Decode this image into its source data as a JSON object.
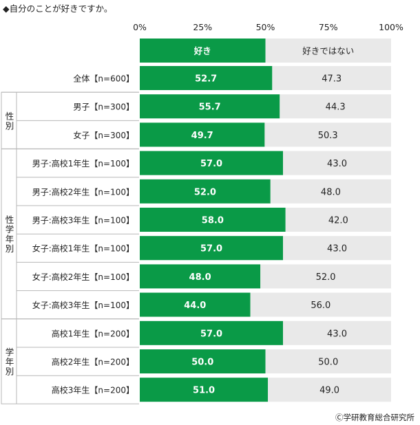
{
  "title": "◆自分のことが好きですか。",
  "credit": "Ⓒ学研教育総合研究所",
  "colors": {
    "like": "#0a9a47",
    "dislike": "#e9e9e9",
    "frame": "#b7b7b7"
  },
  "chart_data": {
    "type": "bar",
    "orientation": "horizontal-stacked-100",
    "xlim": [
      0,
      100
    ],
    "x_ticks": [
      "0%",
      "25%",
      "50%",
      "75%",
      "100%"
    ],
    "series": [
      {
        "name": "好き",
        "values": [
          52.7,
          55.7,
          49.7,
          57.0,
          52.0,
          58.0,
          57.0,
          48.0,
          44.0,
          57.0,
          50.0,
          51.0
        ]
      },
      {
        "name": "好きではない",
        "values": [
          47.3,
          44.3,
          50.3,
          43.0,
          48.0,
          42.0,
          43.0,
          52.0,
          56.0,
          43.0,
          50.0,
          49.0
        ]
      }
    ],
    "categories": [
      "全体【n=600】",
      "男子【n=300】",
      "女子【n=300】",
      "男子:高校1年生【n=100】",
      "男子:高校2年生【n=100】",
      "男子:高校3年生【n=100】",
      "女子:高校1年生【n=100】",
      "女子:高校2年生【n=100】",
      "女子:高校3年生【n=100】",
      "高校1年生【n=200】",
      "高校2年生【n=200】",
      "高校3年生【n=200】"
    ],
    "value_labels": {
      "like": [
        "52.7",
        "55.7",
        "49.7",
        "57.0",
        "52.0",
        "58.0",
        "57.0",
        "48.0",
        "44.0",
        "57.0",
        "50.0",
        "51.0"
      ],
      "dislike": [
        "47.3",
        "44.3",
        "50.3",
        "43.0",
        "48.0",
        "42.0",
        "43.0",
        "52.0",
        "56.0",
        "43.0",
        "50.0",
        "49.0"
      ]
    },
    "groups": [
      {
        "label": "性別",
        "rows": [
          1,
          2
        ]
      },
      {
        "label": "性学年別",
        "rows": [
          3,
          4,
          5,
          6,
          7,
          8
        ]
      },
      {
        "label": "学年別",
        "rows": [
          9,
          10,
          11
        ]
      }
    ]
  }
}
